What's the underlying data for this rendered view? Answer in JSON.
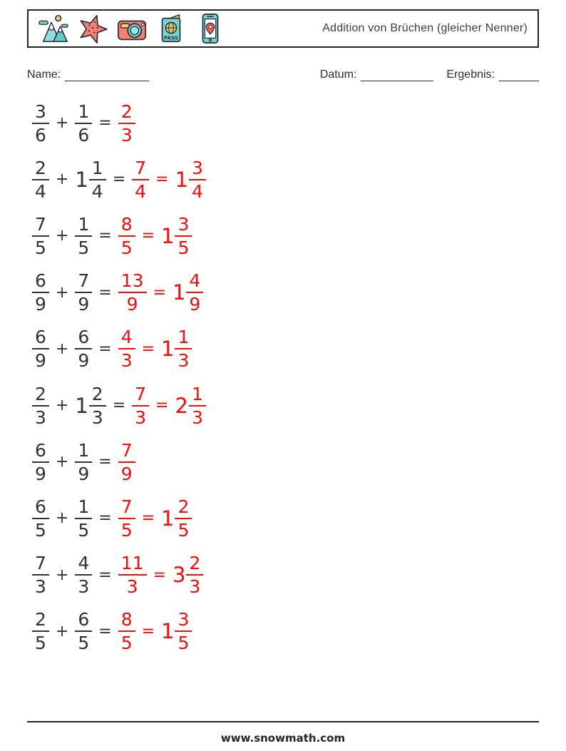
{
  "header": {
    "title": "Addition von Brüchen (gleicher Nenner)",
    "icons": [
      {
        "name": "mountains-icon"
      },
      {
        "name": "starfish-icon"
      },
      {
        "name": "camera-icon"
      },
      {
        "name": "passport-icon",
        "label": "PASS"
      },
      {
        "name": "phone-location-icon"
      }
    ]
  },
  "fields": {
    "name_label": "Name:",
    "datum_label": "Datum:",
    "ergebnis_label": "Ergebnis:"
  },
  "colors": {
    "text_dark": "#32323c",
    "answer_red": "#f60d0d",
    "icon_teal": "#74d6cc",
    "icon_salmon": "#f5816e",
    "icon_yellow": "#f8d36b",
    "icon_outline": "#2b2b3b"
  },
  "problems": [
    {
      "parts": [
        {
          "type": "fraction",
          "whole": "",
          "num": "3",
          "den": "6",
          "color": "black"
        },
        {
          "type": "op",
          "value": "+",
          "color": "black"
        },
        {
          "type": "fraction",
          "whole": "",
          "num": "1",
          "den": "6",
          "color": "black"
        },
        {
          "type": "op",
          "value": "=",
          "color": "black"
        },
        {
          "type": "fraction",
          "whole": "",
          "num": "2",
          "den": "3",
          "color": "red"
        }
      ]
    },
    {
      "parts": [
        {
          "type": "fraction",
          "whole": "",
          "num": "2",
          "den": "4",
          "color": "black"
        },
        {
          "type": "op",
          "value": "+",
          "color": "black"
        },
        {
          "type": "fraction",
          "whole": "1",
          "num": "1",
          "den": "4",
          "color": "black"
        },
        {
          "type": "op",
          "value": "=",
          "color": "black"
        },
        {
          "type": "fraction",
          "whole": "",
          "num": "7",
          "den": "4",
          "color": "red"
        },
        {
          "type": "op",
          "value": "=",
          "color": "red"
        },
        {
          "type": "fraction",
          "whole": "1",
          "num": "3",
          "den": "4",
          "color": "red"
        }
      ]
    },
    {
      "parts": [
        {
          "type": "fraction",
          "whole": "",
          "num": "7",
          "den": "5",
          "color": "black"
        },
        {
          "type": "op",
          "value": "+",
          "color": "black"
        },
        {
          "type": "fraction",
          "whole": "",
          "num": "1",
          "den": "5",
          "color": "black"
        },
        {
          "type": "op",
          "value": "=",
          "color": "black"
        },
        {
          "type": "fraction",
          "whole": "",
          "num": "8",
          "den": "5",
          "color": "red"
        },
        {
          "type": "op",
          "value": "=",
          "color": "red"
        },
        {
          "type": "fraction",
          "whole": "1",
          "num": "3",
          "den": "5",
          "color": "red"
        }
      ]
    },
    {
      "parts": [
        {
          "type": "fraction",
          "whole": "",
          "num": "6",
          "den": "9",
          "color": "black"
        },
        {
          "type": "op",
          "value": "+",
          "color": "black"
        },
        {
          "type": "fraction",
          "whole": "",
          "num": "7",
          "den": "9",
          "color": "black"
        },
        {
          "type": "op",
          "value": "=",
          "color": "black"
        },
        {
          "type": "fraction",
          "whole": "",
          "num": "13",
          "den": "9",
          "color": "red"
        },
        {
          "type": "op",
          "value": "=",
          "color": "red"
        },
        {
          "type": "fraction",
          "whole": "1",
          "num": "4",
          "den": "9",
          "color": "red"
        }
      ]
    },
    {
      "parts": [
        {
          "type": "fraction",
          "whole": "",
          "num": "6",
          "den": "9",
          "color": "black"
        },
        {
          "type": "op",
          "value": "+",
          "color": "black"
        },
        {
          "type": "fraction",
          "whole": "",
          "num": "6",
          "den": "9",
          "color": "black"
        },
        {
          "type": "op",
          "value": "=",
          "color": "black"
        },
        {
          "type": "fraction",
          "whole": "",
          "num": "4",
          "den": "3",
          "color": "red"
        },
        {
          "type": "op",
          "value": "=",
          "color": "red"
        },
        {
          "type": "fraction",
          "whole": "1",
          "num": "1",
          "den": "3",
          "color": "red"
        }
      ]
    },
    {
      "parts": [
        {
          "type": "fraction",
          "whole": "",
          "num": "2",
          "den": "3",
          "color": "black"
        },
        {
          "type": "op",
          "value": "+",
          "color": "black"
        },
        {
          "type": "fraction",
          "whole": "1",
          "num": "2",
          "den": "3",
          "color": "black"
        },
        {
          "type": "op",
          "value": "=",
          "color": "black"
        },
        {
          "type": "fraction",
          "whole": "",
          "num": "7",
          "den": "3",
          "color": "red"
        },
        {
          "type": "op",
          "value": "=",
          "color": "red"
        },
        {
          "type": "fraction",
          "whole": "2",
          "num": "1",
          "den": "3",
          "color": "red"
        }
      ]
    },
    {
      "parts": [
        {
          "type": "fraction",
          "whole": "",
          "num": "6",
          "den": "9",
          "color": "black"
        },
        {
          "type": "op",
          "value": "+",
          "color": "black"
        },
        {
          "type": "fraction",
          "whole": "",
          "num": "1",
          "den": "9",
          "color": "black"
        },
        {
          "type": "op",
          "value": "=",
          "color": "black"
        },
        {
          "type": "fraction",
          "whole": "",
          "num": "7",
          "den": "9",
          "color": "red"
        }
      ]
    },
    {
      "parts": [
        {
          "type": "fraction",
          "whole": "",
          "num": "6",
          "den": "5",
          "color": "black"
        },
        {
          "type": "op",
          "value": "+",
          "color": "black"
        },
        {
          "type": "fraction",
          "whole": "",
          "num": "1",
          "den": "5",
          "color": "black"
        },
        {
          "type": "op",
          "value": "=",
          "color": "black"
        },
        {
          "type": "fraction",
          "whole": "",
          "num": "7",
          "den": "5",
          "color": "red"
        },
        {
          "type": "op",
          "value": "=",
          "color": "red"
        },
        {
          "type": "fraction",
          "whole": "1",
          "num": "2",
          "den": "5",
          "color": "red"
        }
      ]
    },
    {
      "parts": [
        {
          "type": "fraction",
          "whole": "",
          "num": "7",
          "den": "3",
          "color": "black"
        },
        {
          "type": "op",
          "value": "+",
          "color": "black"
        },
        {
          "type": "fraction",
          "whole": "",
          "num": "4",
          "den": "3",
          "color": "black"
        },
        {
          "type": "op",
          "value": "=",
          "color": "black"
        },
        {
          "type": "fraction",
          "whole": "",
          "num": "11",
          "den": "3",
          "color": "red"
        },
        {
          "type": "op",
          "value": "=",
          "color": "red"
        },
        {
          "type": "fraction",
          "whole": "3",
          "num": "2",
          "den": "3",
          "color": "red"
        }
      ]
    },
    {
      "parts": [
        {
          "type": "fraction",
          "whole": "",
          "num": "2",
          "den": "5",
          "color": "black"
        },
        {
          "type": "op",
          "value": "+",
          "color": "black"
        },
        {
          "type": "fraction",
          "whole": "",
          "num": "6",
          "den": "5",
          "color": "black"
        },
        {
          "type": "op",
          "value": "=",
          "color": "black"
        },
        {
          "type": "fraction",
          "whole": "",
          "num": "8",
          "den": "5",
          "color": "red"
        },
        {
          "type": "op",
          "value": "=",
          "color": "red"
        },
        {
          "type": "fraction",
          "whole": "1",
          "num": "3",
          "den": "5",
          "color": "red"
        }
      ]
    }
  ],
  "footer": {
    "url": "www.snowmath.com"
  }
}
